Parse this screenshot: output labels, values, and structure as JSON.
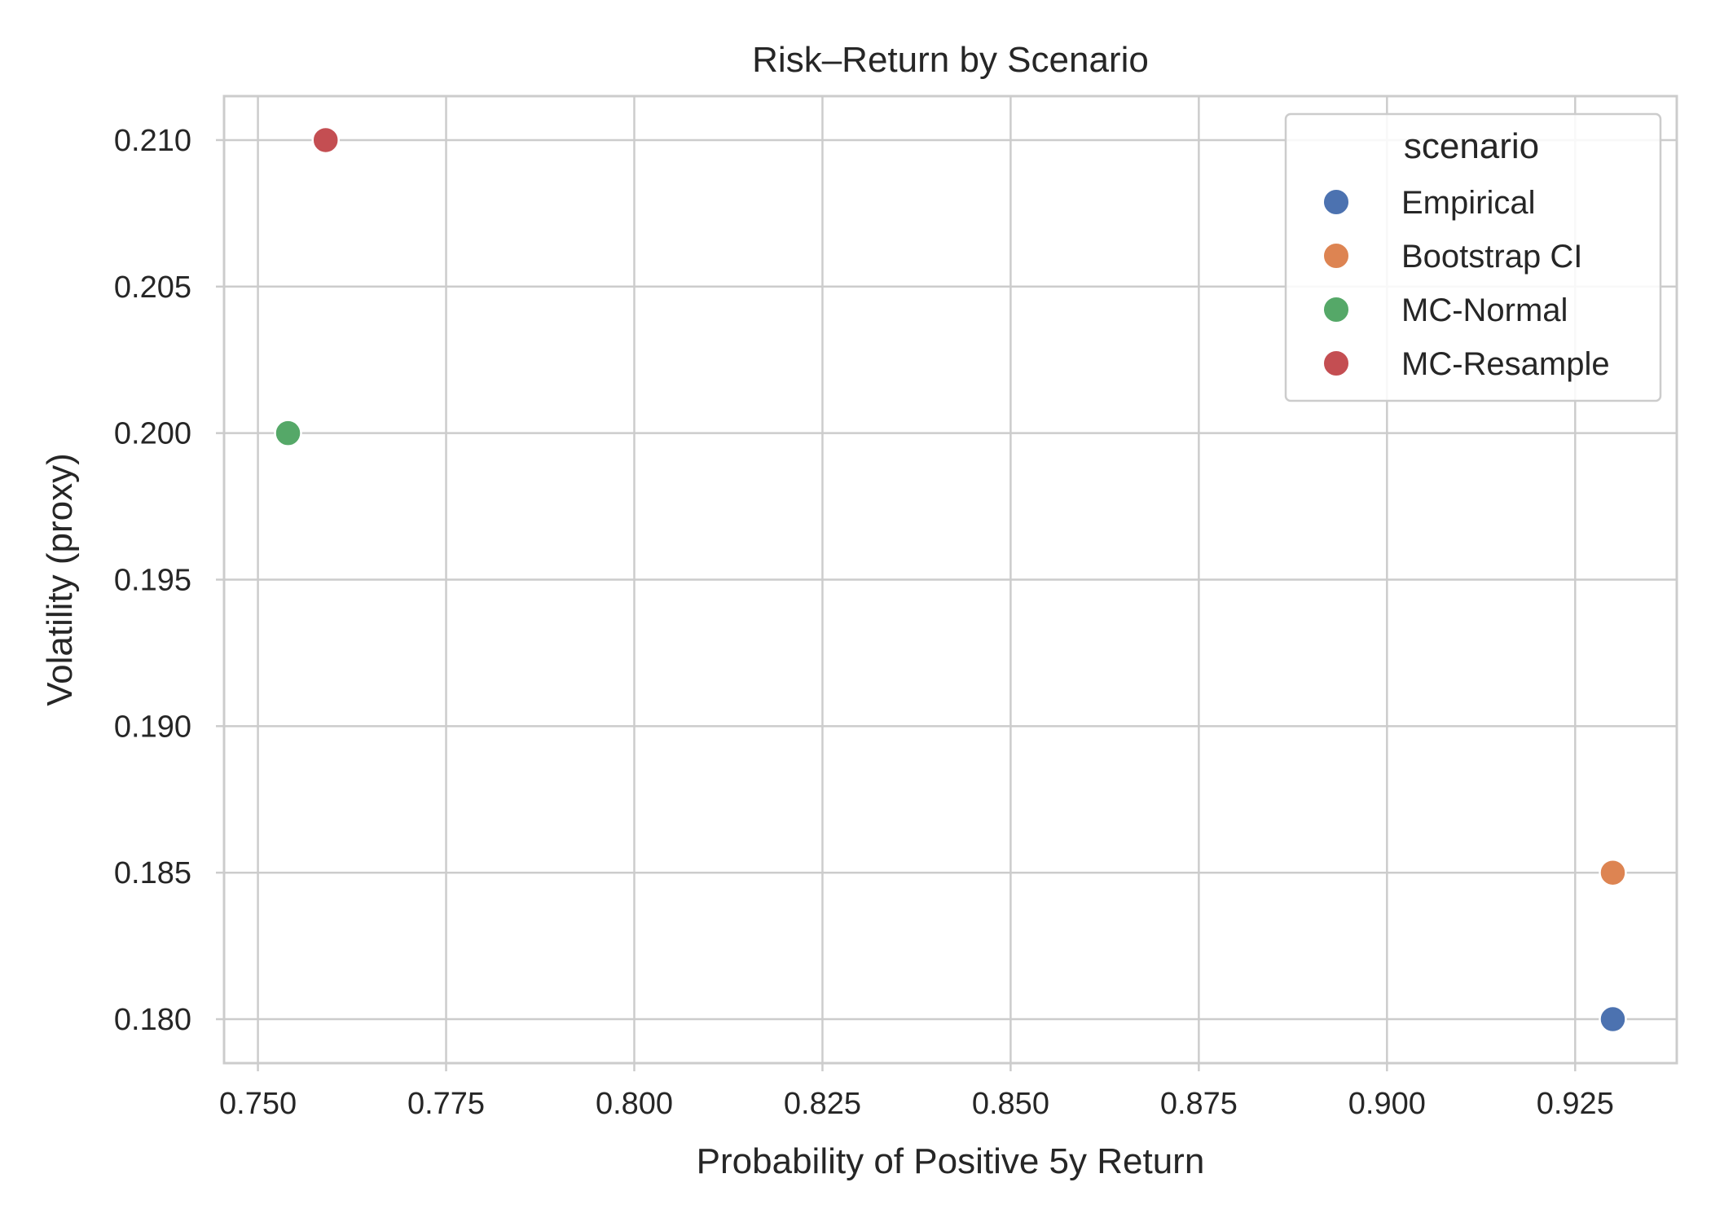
{
  "chart_data": {
    "type": "scatter",
    "title": "Risk–Return by Scenario",
    "xlabel": "Probability of Positive 5y Return",
    "ylabel": "Volatility (proxy)",
    "xlim": [
      0.7455,
      0.9385
    ],
    "ylim": [
      0.1785,
      0.2115
    ],
    "xticks": [
      0.75,
      0.775,
      0.8,
      0.825,
      0.85,
      0.875,
      0.9,
      0.925
    ],
    "yticks": [
      0.18,
      0.185,
      0.19,
      0.195,
      0.2,
      0.205,
      0.21
    ],
    "grid": true,
    "legend": {
      "title": "scenario",
      "placement": "top-right"
    },
    "series": [
      {
        "name": "Empirical",
        "color": "#4c72b0",
        "x": [
          0.93
        ],
        "y": [
          0.18
        ]
      },
      {
        "name": "Bootstrap CI",
        "color": "#dd8452",
        "x": [
          0.93
        ],
        "y": [
          0.185
        ]
      },
      {
        "name": "MC-Normal",
        "color": "#55a868",
        "x": [
          0.754
        ],
        "y": [
          0.2
        ]
      },
      {
        "name": "MC-Resample",
        "color": "#c44e52",
        "x": [
          0.759
        ],
        "y": [
          0.21
        ]
      }
    ]
  }
}
